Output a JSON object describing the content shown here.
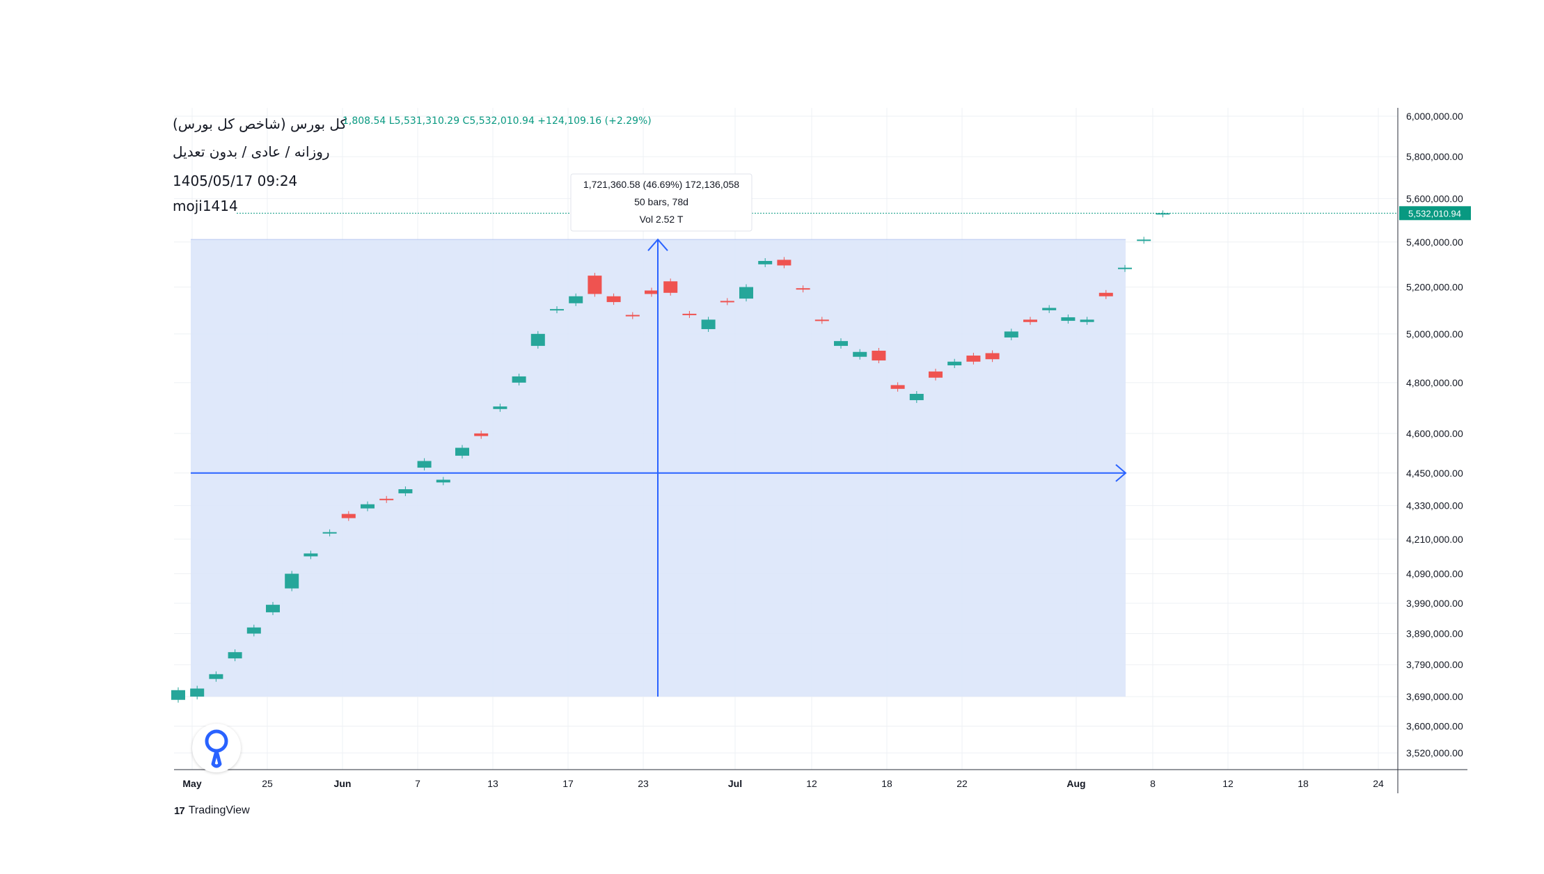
{
  "header": {
    "title": "کل بورس (شاخص کل بورس)",
    "subtitle": "روزانه / عادی / بدون تعدیل",
    "datetime": "1405/05/17 09:24",
    "author": "moji1414",
    "ohlc_text": "1,808.54  L5,531,310.29  C5,532,010.94  +124,109.16 (+2.29%)"
  },
  "measure": {
    "line1": "1,721,360.58 (46.69%) 172,136,058",
    "line2": "50 bars, 78d",
    "line3": "Vol 2.52 T"
  },
  "price_badge": "5,532,010.94",
  "branding": {
    "mark": "17",
    "name": "TradingView"
  },
  "colors": {
    "up": "#26a69a",
    "down": "#ef5350",
    "measure_fill": "#dce6fa",
    "measure_line": "#2962ff",
    "badge": "#089981"
  },
  "chart_data": {
    "type": "candlestick",
    "y_axis_ticks": [
      6000000,
      5800000,
      5600000,
      5400000,
      5200000,
      5000000,
      4800000,
      4600000,
      4450000,
      4330000,
      4210000,
      4090000,
      3990000,
      3890000,
      3790000,
      3690000,
      3600000,
      3520000
    ],
    "y_axis_labels": [
      "6,000,000.00",
      "5,800,000.00",
      "5,600,000.00",
      "5,400,000.00",
      "5,200,000.00",
      "5,000,000.00",
      "4,800,000.00",
      "4,600,000.00",
      "4,450,000.00",
      "4,330,000.00",
      "4,210,000.00",
      "4,090,000.00",
      "3,990,000.00",
      "3,890,000.00",
      "3,790,000.00",
      "3,690,000.00",
      "3,600,000.00",
      "3,520,000.00"
    ],
    "y_scale": "log",
    "x_axis_labels": [
      "May",
      "25",
      "Jun",
      "7",
      "13",
      "17",
      "23",
      "Jul",
      "12",
      "18",
      "22",
      "Aug",
      "8",
      "12",
      "18",
      "24"
    ],
    "last_price": 5532010.94,
    "measure_range": {
      "from": 3690000,
      "to": 5411370,
      "change": 1721360.58,
      "percent": 46.69,
      "bars": 50,
      "days": 78
    },
    "candles": [
      {
        "x": 0,
        "o": 3680000,
        "c": 3710000
      },
      {
        "x": 1,
        "o": 3690000,
        "c": 3715000
      },
      {
        "x": 2,
        "o": 3745000,
        "c": 3760000
      },
      {
        "x": 3,
        "o": 3810000,
        "c": 3830000
      },
      {
        "x": 4,
        "o": 3890000,
        "c": 3910000
      },
      {
        "x": 5,
        "o": 3960000,
        "c": 3985000
      },
      {
        "x": 6,
        "o": 4040000,
        "c": 4090000
      },
      {
        "x": 7,
        "o": 4150000,
        "c": 4160000
      },
      {
        "x": 8,
        "o": 4230000,
        "c": 4235000
      },
      {
        "x": 9,
        "o": 4300000,
        "c": 4285000
      },
      {
        "x": 10,
        "o": 4320000,
        "c": 4335000
      },
      {
        "x": 11,
        "o": 4355000,
        "c": 4350000
      },
      {
        "x": 12,
        "o": 4375000,
        "c": 4390000
      },
      {
        "x": 13,
        "o": 4470000,
        "c": 4495000
      },
      {
        "x": 14,
        "o": 4415000,
        "c": 4425000
      },
      {
        "x": 15,
        "o": 4515000,
        "c": 4545000
      },
      {
        "x": 16,
        "o": 4600000,
        "c": 4590000
      },
      {
        "x": 17,
        "o": 4695000,
        "c": 4705000
      },
      {
        "x": 18,
        "o": 4800000,
        "c": 4825000
      },
      {
        "x": 19,
        "o": 4950000,
        "c": 5000000
      },
      {
        "x": 20,
        "o": 5100000,
        "c": 5105000
      },
      {
        "x": 21,
        "o": 5130000,
        "c": 5160000
      },
      {
        "x": 22,
        "o": 5250000,
        "c": 5170000
      },
      {
        "x": 23,
        "o": 5160000,
        "c": 5135000
      },
      {
        "x": 24,
        "o": 5080000,
        "c": 5075000
      },
      {
        "x": 25,
        "o": 5185000,
        "c": 5170000
      },
      {
        "x": 26,
        "o": 5225000,
        "c": 5175000
      },
      {
        "x": 27,
        "o": 5085000,
        "c": 5080000
      },
      {
        "x": 28,
        "o": 5020000,
        "c": 5060000
      },
      {
        "x": 29,
        "o": 5140000,
        "c": 5135000
      },
      {
        "x": 30,
        "o": 5150000,
        "c": 5200000
      },
      {
        "x": 31,
        "o": 5300000,
        "c": 5315000
      },
      {
        "x": 32,
        "o": 5320000,
        "c": 5295000
      },
      {
        "x": 33,
        "o": 5195000,
        "c": 5190000
      },
      {
        "x": 34,
        "o": 5060000,
        "c": 5055000
      },
      {
        "x": 35,
        "o": 4950000,
        "c": 4970000
      },
      {
        "x": 36,
        "o": 4905000,
        "c": 4925000
      },
      {
        "x": 37,
        "o": 4930000,
        "c": 4890000
      },
      {
        "x": 38,
        "o": 4790000,
        "c": 4775000
      },
      {
        "x": 39,
        "o": 4730000,
        "c": 4755000
      },
      {
        "x": 40,
        "o": 4845000,
        "c": 4820000
      },
      {
        "x": 41,
        "o": 4870000,
        "c": 4885000
      },
      {
        "x": 42,
        "o": 4910000,
        "c": 4885000
      },
      {
        "x": 43,
        "o": 4920000,
        "c": 4895000
      },
      {
        "x": 44,
        "o": 4985000,
        "c": 5010000
      },
      {
        "x": 45,
        "o": 5060000,
        "c": 5050000
      },
      {
        "x": 46,
        "o": 5100000,
        "c": 5110000
      },
      {
        "x": 47,
        "o": 5055000,
        "c": 5070000
      },
      {
        "x": 48,
        "o": 5050000,
        "c": 5060000
      },
      {
        "x": 49,
        "o": 5175000,
        "c": 5160000
      },
      {
        "x": 50,
        "o": 5280000,
        "c": 5285000
      },
      {
        "x": 51,
        "o": 5405000,
        "c": 5411000
      },
      {
        "x": 52,
        "o": 5529000,
        "c": 5532000
      }
    ]
  }
}
